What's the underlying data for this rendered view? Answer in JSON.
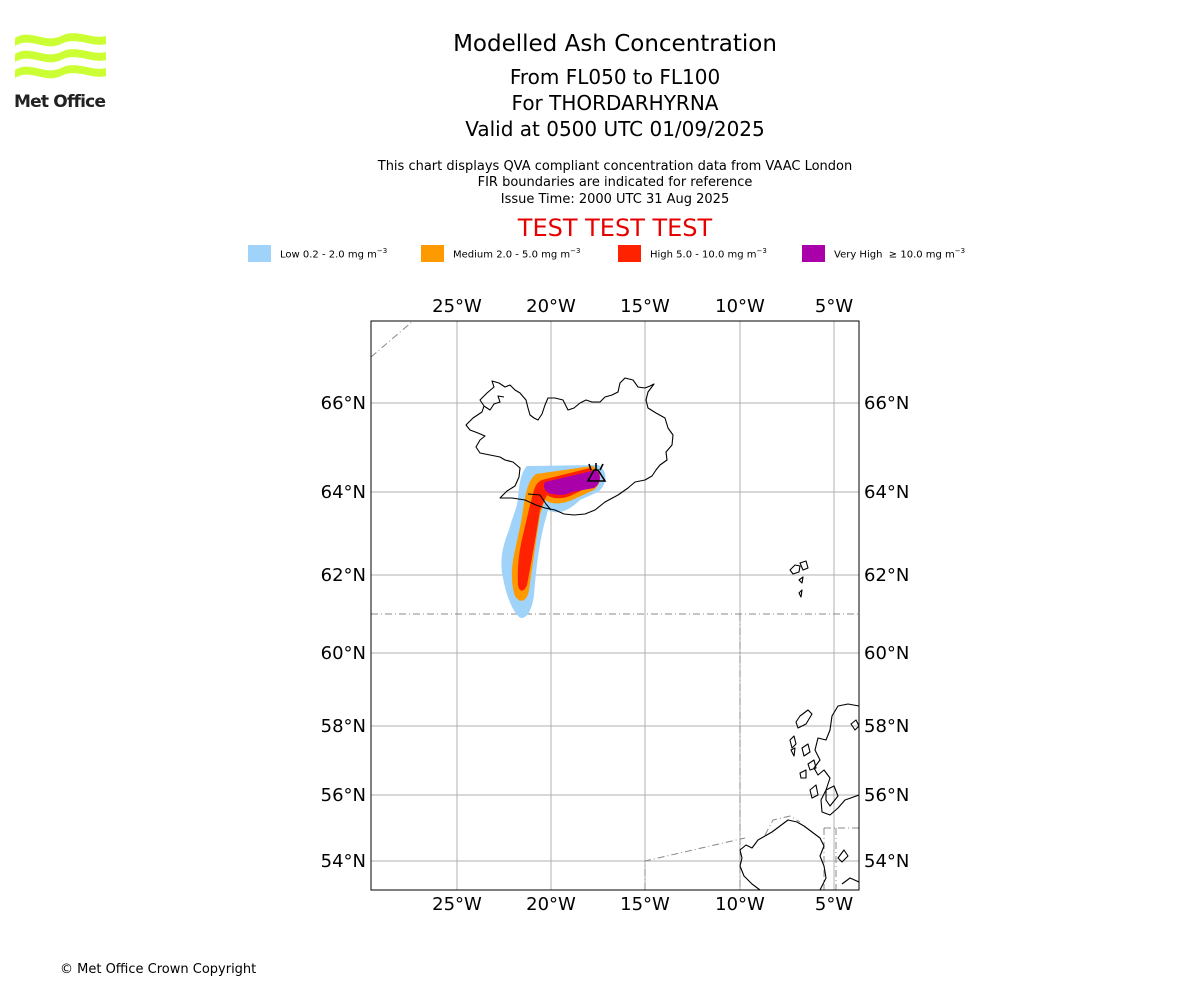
{
  "logo": {
    "text": "Met Office",
    "color": "#ccff33"
  },
  "titles": {
    "main": "Modelled Ash Concentration",
    "levels": "From FL050 to FL100",
    "volcano": "For THORDARHYRNA",
    "valid": "Valid at 0500 UTC 01/09/2025",
    "note1": "This chart displays QVA compliant concentration data from VAAC London",
    "note2": "FIR boundaries are indicated for reference",
    "issue": "Issue Time: 2000 UTC 31 Aug 2025",
    "test": "TEST TEST TEST"
  },
  "legend": [
    {
      "name": "Low",
      "range": "0.2 - 2.0 mg m",
      "color": "#a0d3fa"
    },
    {
      "name": "Medium",
      "range": "2.0 - 5.0 mg m",
      "color": "#ff9900"
    },
    {
      "name": "High",
      "range": "5.0 - 10.0 mg m",
      "color": "#ff2200"
    },
    {
      "name": "Very High",
      "range": "≥ 10.0 mg m",
      "color": "#aa00aa"
    }
  ],
  "legend_unit_exponent": "−3",
  "map": {
    "lon_labels": [
      "25°W",
      "20°W",
      "15°W",
      "10°W",
      "5°W"
    ],
    "lat_labels": [
      "66°N",
      "64°N",
      "62°N",
      "60°N",
      "58°N",
      "56°N",
      "54°N"
    ],
    "lon_ticks": [
      -25,
      -20,
      -15,
      -10,
      -5
    ],
    "lat_ticks": [
      66,
      64,
      62,
      60,
      58,
      56,
      54
    ]
  },
  "copyright": "© Met Office Crown Copyright"
}
